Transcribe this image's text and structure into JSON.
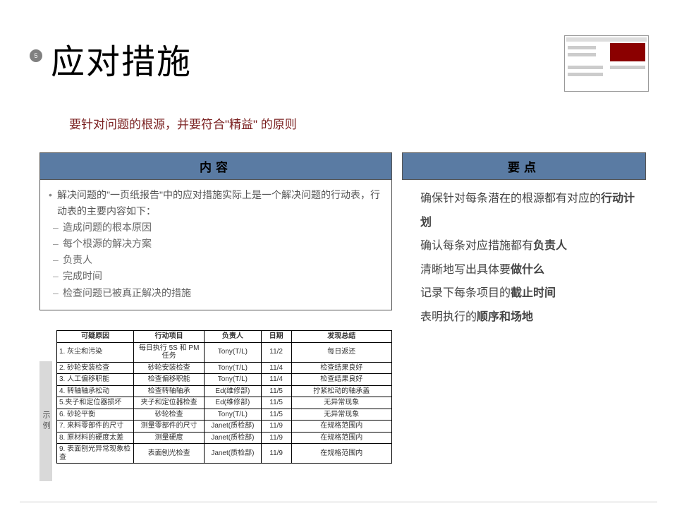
{
  "slideNumber": "5",
  "title": "应对措施",
  "subtitle": "要针对问题的根源，并要符合\"精益\" 的原则",
  "leftPanel": {
    "header": "内容",
    "intro": "解决问题的\"一页纸报告\"中的应对措施实际上是一个解决问题的行动表，行动表的主要内容如下：",
    "items": [
      "造成问题的根本原因",
      "每个根源的解决方案",
      "负责人",
      "完成时间",
      "检查问题已被真正解决的措施"
    ]
  },
  "rightPanel": {
    "header": "要点",
    "items": [
      {
        "pre": "确保针对每条潜在的根源都有对应的",
        "bold": "行动计划",
        "post": ""
      },
      {
        "pre": "确认每条对应措施都有",
        "bold": "负责人",
        "post": ""
      },
      {
        "pre": "清晰地写出具体要",
        "bold": "做什么",
        "post": ""
      },
      {
        "pre": "记录下每条项目的",
        "bold": "截止时间",
        "post": ""
      },
      {
        "pre": "表明执行的",
        "bold": "顺序和场地",
        "post": ""
      }
    ]
  },
  "exampleLabel": "示例",
  "table": {
    "headers": [
      "可疑原因",
      "行动项目",
      "负责人",
      "日期",
      "发现总结"
    ],
    "rows": [
      [
        "1. 灰尘和污染",
        "每日执行 5S 和 PM 任务",
        "Tony(T/L)",
        "11/2",
        "每日返还"
      ],
      [
        "2. 砂轮安装检查",
        "砂轮安装检查",
        "Tony(T/L)",
        "11/4",
        "检查结果良好"
      ],
      [
        "3. 人工偏移职能",
        "检查偏移职能",
        "Tony(T/L)",
        "11/4",
        "检查结果良好"
      ],
      [
        "4. 转轴轴承松动",
        "检查转轴轴承",
        "Ed(维修部)",
        "11/5",
        "拧紧松动的轴承盖"
      ],
      [
        "5.夹子和定位器损坏",
        "夹子和定位器检查",
        "Ed(维修部)",
        "11/5",
        "无异常现象"
      ],
      [
        "6. 砂轮平衡",
        "砂轮检查",
        "Tony(T/L)",
        "11/5",
        "无异常现象"
      ],
      [
        "7. 来料零部件的尺寸",
        "测量零部件的尺寸",
        "Janet(质检部)",
        "11/9",
        "在规格范围内"
      ],
      [
        "8. 原材料的硬度太差",
        "测量硬度",
        "Janet(质检部)",
        "11/9",
        "在规格范围内"
      ],
      [
        "9. 表面刨光异常现象检查",
        "表面刨光检查",
        "Janet(质检部)",
        "11/9",
        "在规格范围内"
      ]
    ]
  },
  "colors": {
    "headerBg": "#5a7ba3",
    "subtitleColor": "#7a2020",
    "slideNumBg": "#808080"
  }
}
